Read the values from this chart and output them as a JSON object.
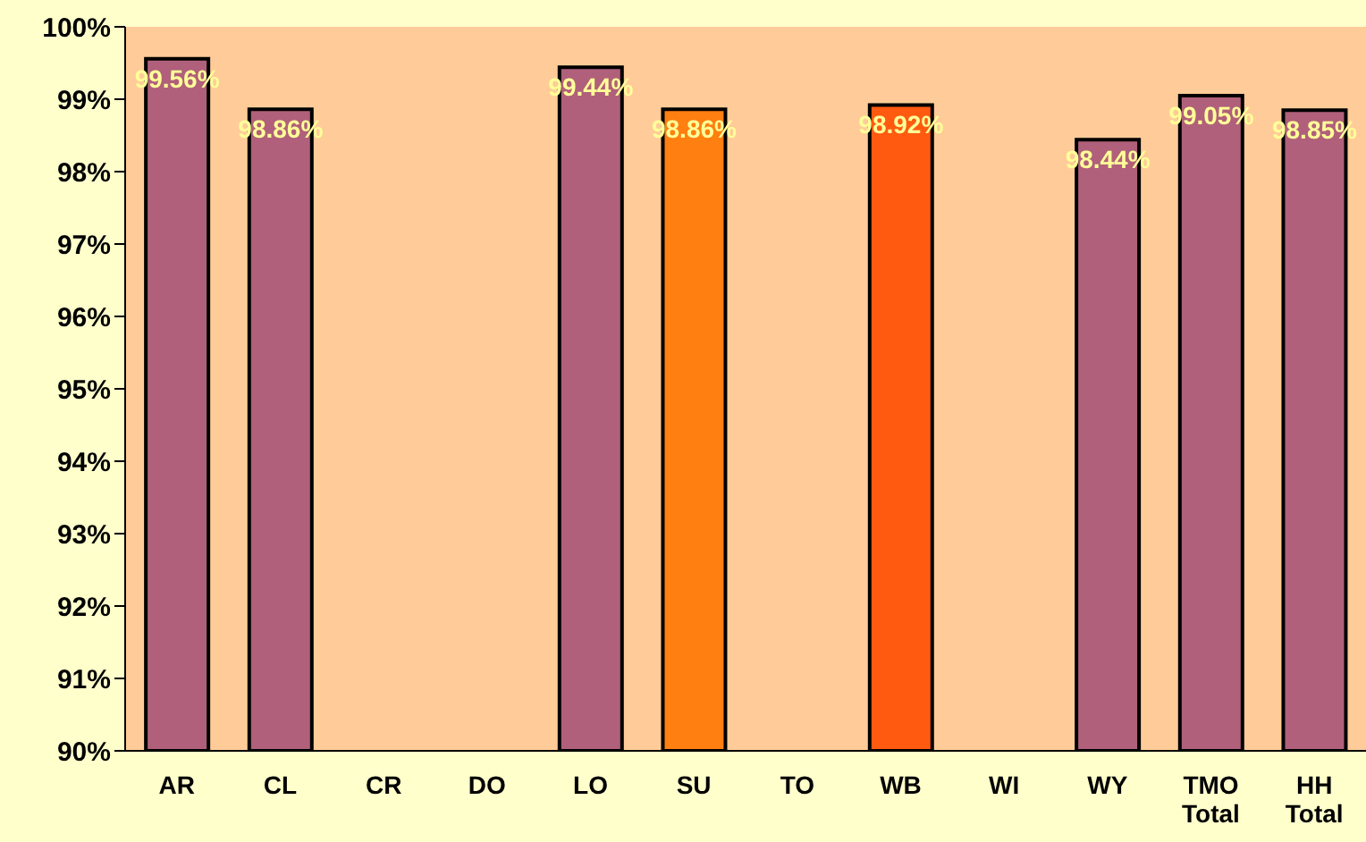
{
  "chart_data": {
    "type": "bar",
    "categories": [
      "AR",
      "CL",
      "CR",
      "DO",
      "LO",
      "SU",
      "TO",
      "WB",
      "WI",
      "WY",
      "TMO Total",
      "HH Total"
    ],
    "values": [
      99.56,
      98.86,
      null,
      null,
      99.44,
      98.86,
      null,
      98.92,
      null,
      98.44,
      99.05,
      98.85
    ],
    "value_labels": [
      "99.56%",
      "98.86%",
      null,
      null,
      "99.44%",
      "98.86%",
      null,
      "98.92%",
      null,
      "98.44%",
      "99.05%",
      "98.85%"
    ],
    "colors": [
      "#b0607a",
      "#b0607a",
      "#b0607a",
      "#b0607a",
      "#b0607a",
      "#ff7f10",
      "#b0607a",
      "#ff5a10",
      "#b0607a",
      "#b0607a",
      "#b0607a",
      "#b0607a"
    ],
    "ylim": [
      90,
      100
    ],
    "yticks": [
      {
        "value": 90,
        "label": "90%"
      },
      {
        "value": 91,
        "label": "91%"
      },
      {
        "value": 92,
        "label": "92%"
      },
      {
        "value": 93,
        "label": "93%"
      },
      {
        "value": 94,
        "label": "94%"
      },
      {
        "value": 95,
        "label": "95%"
      },
      {
        "value": 96,
        "label": "96%"
      },
      {
        "value": 97,
        "label": "97%"
      },
      {
        "value": 98,
        "label": "98%"
      },
      {
        "value": 99,
        "label": "99%"
      },
      {
        "value": 100,
        "label": "100%"
      }
    ],
    "grid": false,
    "legend": false
  }
}
